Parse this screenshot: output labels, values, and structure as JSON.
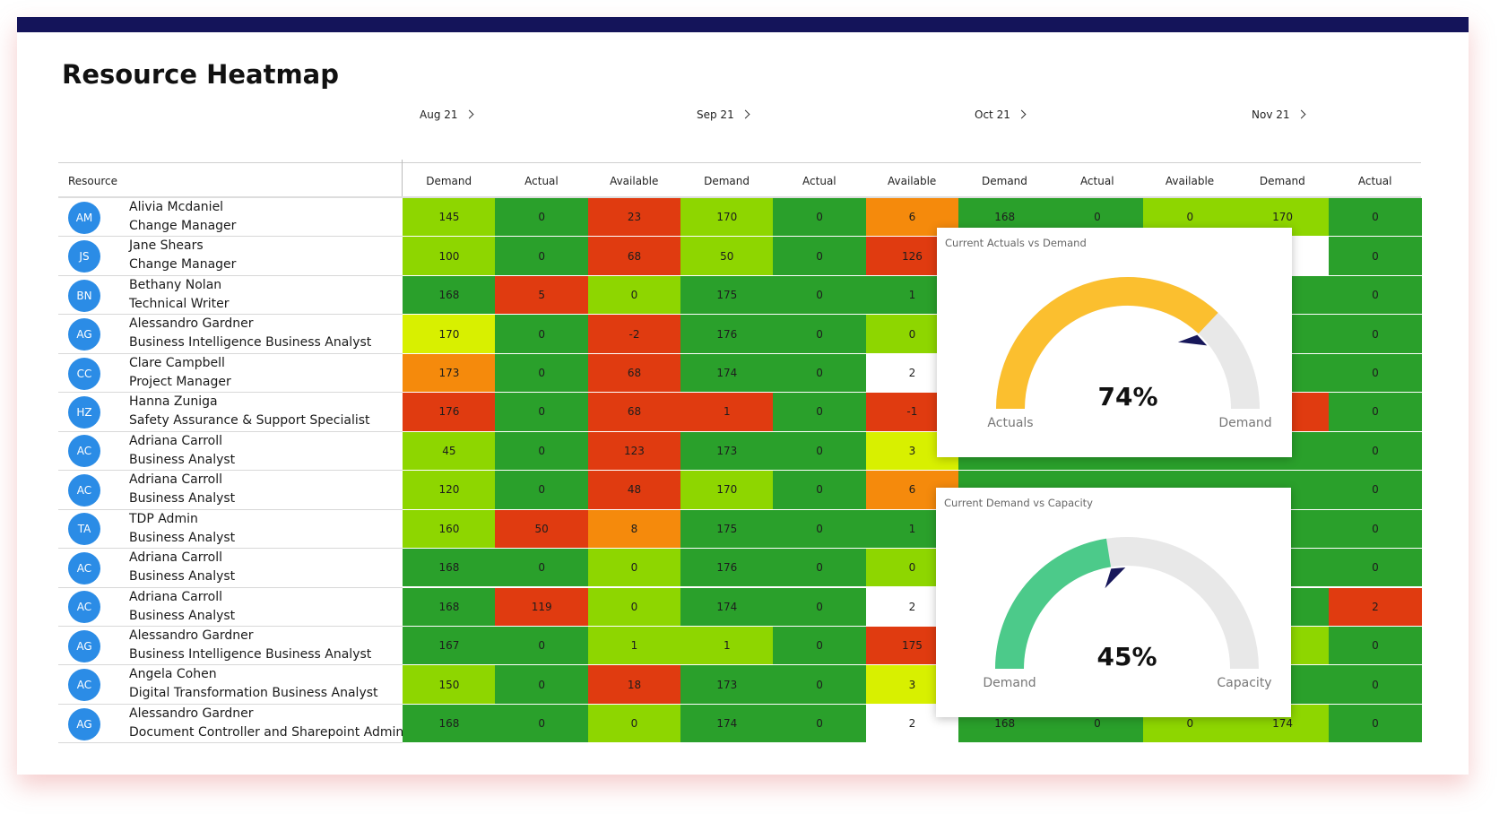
{
  "header": {
    "title": "Resource Heatmap"
  },
  "table": {
    "months": [
      "Aug 21",
      "Sep 21",
      "Oct 21",
      "Nov 21"
    ],
    "resource_header": "Resource",
    "columns": [
      "Demand",
      "Actual",
      "Available",
      "Demand",
      "Actual",
      "Available",
      "Demand",
      "Actual",
      "Available",
      "Demand",
      "Actual"
    ],
    "rows": [
      {
        "initials": "AM",
        "name": "Alivia Mcdaniel",
        "role": "Change Manager",
        "cells": [
          145,
          0,
          23,
          170,
          0,
          6,
          168,
          0,
          0,
          170,
          0
        ],
        "colors": [
          "#8ed600",
          "#2aa02b",
          "#e03b10",
          "#8ed600",
          "#2aa02b",
          "#f58a0c",
          "#2aa02b",
          "#2aa02b",
          "#8ed600",
          "#8ed600",
          "#2aa02b"
        ]
      },
      {
        "initials": "JS",
        "name": "Jane Shears",
        "role": "Change Manager",
        "cells": [
          100,
          0,
          68,
          50,
          0,
          126,
          null,
          null,
          null,
          null,
          0
        ],
        "colors": [
          "#8ed600",
          "#2aa02b",
          "#e03b10",
          "#8ed600",
          "#2aa02b",
          "#e03b10",
          null,
          null,
          null,
          "#ffffff",
          "#2aa02b"
        ]
      },
      {
        "initials": "BN",
        "name": "Bethany Nolan",
        "role": "Technical Writer",
        "cells": [
          168,
          5,
          0,
          175,
          0,
          1,
          null,
          null,
          null,
          null,
          0
        ],
        "colors": [
          "#2aa02b",
          "#e03b10",
          "#8ed600",
          "#2aa02b",
          "#2aa02b",
          "#2aa02b",
          null,
          null,
          null,
          null,
          "#2aa02b"
        ]
      },
      {
        "initials": "AG",
        "name": "Alessandro Gardner",
        "role": "Business Intelligence Business Analyst",
        "cells": [
          170,
          0,
          -2,
          176,
          0,
          0,
          null,
          null,
          null,
          null,
          0
        ],
        "colors": [
          "#d8f000",
          "#2aa02b",
          "#e03b10",
          "#2aa02b",
          "#2aa02b",
          "#8ed600",
          null,
          null,
          null,
          null,
          "#2aa02b"
        ]
      },
      {
        "initials": "CC",
        "name": "Clare Campbell",
        "role": "Project Manager",
        "cells": [
          173,
          0,
          68,
          174,
          0,
          2,
          null,
          null,
          null,
          null,
          0
        ],
        "colors": [
          "#f58a0c",
          "#2aa02b",
          "#e03b10",
          "#2aa02b",
          "#2aa02b",
          "#ffffff",
          null,
          null,
          null,
          null,
          "#2aa02b"
        ]
      },
      {
        "initials": "HZ",
        "name": "Hanna Zuniga",
        "role": "Safety Assurance & Support Specialist",
        "cells": [
          176,
          0,
          68,
          1,
          0,
          -1,
          null,
          null,
          null,
          null,
          0
        ],
        "colors": [
          "#e03b10",
          "#2aa02b",
          "#e03b10",
          "#e03b10",
          "#2aa02b",
          "#e03b10",
          null,
          null,
          null,
          "#e03b10",
          "#2aa02b"
        ]
      },
      {
        "initials": "AC",
        "name": "Adriana Carroll",
        "role": "Business Analyst",
        "cells": [
          45,
          0,
          123,
          173,
          0,
          3,
          null,
          null,
          null,
          null,
          0
        ],
        "colors": [
          "#8ed600",
          "#2aa02b",
          "#e03b10",
          "#2aa02b",
          "#2aa02b",
          "#d8f000",
          null,
          null,
          null,
          null,
          "#2aa02b"
        ]
      },
      {
        "initials": "AC",
        "name": "Adriana Carroll",
        "role": "Business Analyst",
        "cells": [
          120,
          0,
          48,
          170,
          0,
          6,
          null,
          null,
          null,
          null,
          0
        ],
        "colors": [
          "#8ed600",
          "#2aa02b",
          "#e03b10",
          "#8ed600",
          "#2aa02b",
          "#f58a0c",
          null,
          null,
          null,
          null,
          "#2aa02b"
        ]
      },
      {
        "initials": "TA",
        "name": "TDP Admin",
        "role": "Business Analyst",
        "cells": [
          160,
          50,
          8,
          175,
          0,
          1,
          null,
          null,
          null,
          null,
          0
        ],
        "colors": [
          "#8ed600",
          "#e03b10",
          "#f58a0c",
          "#2aa02b",
          "#2aa02b",
          "#2aa02b",
          null,
          null,
          null,
          null,
          "#2aa02b"
        ]
      },
      {
        "initials": "AC",
        "name": "Adriana Carroll",
        "role": "Business Analyst",
        "cells": [
          168,
          0,
          0,
          176,
          0,
          0,
          null,
          null,
          null,
          null,
          0
        ],
        "colors": [
          "#2aa02b",
          "#2aa02b",
          "#8ed600",
          "#2aa02b",
          "#2aa02b",
          "#8ed600",
          null,
          null,
          null,
          null,
          "#2aa02b"
        ]
      },
      {
        "initials": "AC",
        "name": "Adriana Carroll",
        "role": "Business Analyst",
        "cells": [
          168,
          119,
          0,
          174,
          0,
          2,
          null,
          null,
          null,
          null,
          2
        ],
        "colors": [
          "#2aa02b",
          "#e03b10",
          "#8ed600",
          "#2aa02b",
          "#2aa02b",
          "#ffffff",
          null,
          null,
          null,
          null,
          "#e03b10"
        ]
      },
      {
        "initials": "AG",
        "name": "Alessandro Gardner",
        "role": "Business Intelligence Business Analyst",
        "cells": [
          167,
          0,
          1,
          1,
          0,
          175,
          null,
          null,
          null,
          null,
          0
        ],
        "colors": [
          "#2aa02b",
          "#2aa02b",
          "#8ed600",
          "#8ed600",
          "#2aa02b",
          "#e03b10",
          null,
          null,
          null,
          "#8ed600",
          "#2aa02b"
        ]
      },
      {
        "initials": "AC",
        "name": "Angela Cohen",
        "role": "Digital Transformation Business Analyst",
        "cells": [
          150,
          0,
          18,
          173,
          0,
          3,
          null,
          null,
          null,
          null,
          0
        ],
        "colors": [
          "#8ed600",
          "#2aa02b",
          "#e03b10",
          "#2aa02b",
          "#2aa02b",
          "#d8f000",
          null,
          null,
          null,
          null,
          "#2aa02b"
        ]
      },
      {
        "initials": "AG",
        "name": "Alessandro Gardner",
        "role": "Document Controller and Sharepoint Admin",
        "cells": [
          168,
          0,
          0,
          174,
          0,
          2,
          168,
          0,
          0,
          174,
          0
        ],
        "colors": [
          "#2aa02b",
          "#2aa02b",
          "#8ed600",
          "#2aa02b",
          "#2aa02b",
          "#ffffff",
          "#2aa02b",
          "#2aa02b",
          "#8ed600",
          "#8ed600",
          "#2aa02b"
        ]
      }
    ]
  },
  "gauges": [
    {
      "title": "Current Actuals vs Demand",
      "value": 74,
      "value_label": "74%",
      "min_label": "Actuals",
      "max_label": "Demand",
      "color": "#fbbf2f"
    },
    {
      "title": "Current Demand vs Capacity",
      "value": 45,
      "value_label": "45%",
      "min_label": "Demand",
      "max_label": "Capacity",
      "color": "#4cca8a"
    }
  ]
}
